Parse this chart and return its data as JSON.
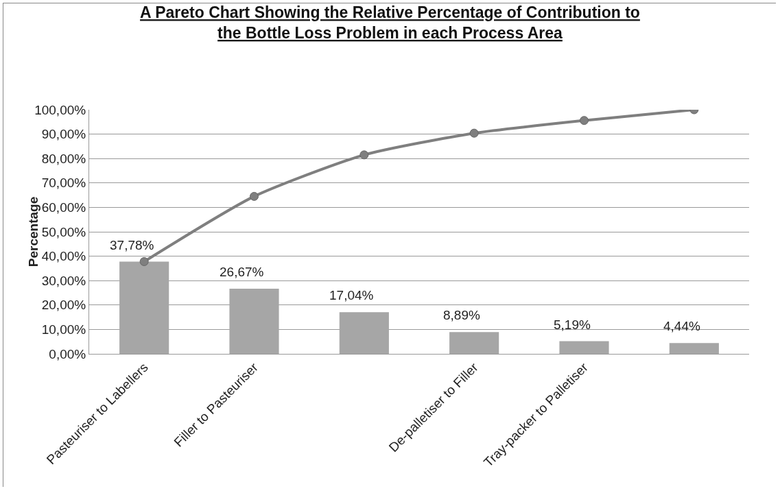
{
  "chart_data": {
    "type": "bar",
    "title": "A Pareto Chart Showing the Relative Percentage of Contribution to the Bottle Loss Problem in each Process Area",
    "ylabel": "Percentage",
    "categories": [
      "Pasteuriser to Labellers",
      "Filler to Pasteuriser",
      null,
      "De-palletiser to Filler",
      "Tray-packer to Palletiser",
      null
    ],
    "series": [
      {
        "color": "#a6a6a6",
        "values": [
          37.78,
          26.67,
          17.04,
          8.89,
          5.19,
          4.44
        ],
        "value_labels": [
          "37,78%",
          "26,67%",
          "17,04%",
          "8,89%",
          "5,19%",
          "4,44%"
        ]
      },
      {
        "type": "line",
        "color": "#7f7f7f",
        "values": [
          37.8,
          64.5,
          81.5,
          90.4,
          95.6,
          100
        ],
        "marker": "circle"
      }
    ],
    "ylim": [
      0,
      100
    ],
    "yticks": [
      {
        "value": 0,
        "label": "0,00%"
      },
      {
        "value": 10,
        "label": "10,00%"
      },
      {
        "value": 20,
        "label": "20,00%"
      },
      {
        "value": 30,
        "label": "30,00%"
      },
      {
        "value": 40,
        "label": "40,00%"
      },
      {
        "value": 50,
        "label": "50,00%"
      },
      {
        "value": 60,
        "label": "60,00%"
      },
      {
        "value": 70,
        "label": "70,00%"
      },
      {
        "value": 80,
        "label": "80,00%"
      },
      {
        "value": 90,
        "label": "90,00%"
      },
      {
        "value": 100,
        "label": "100,00%"
      }
    ],
    "grid": "y",
    "legend": false
  }
}
